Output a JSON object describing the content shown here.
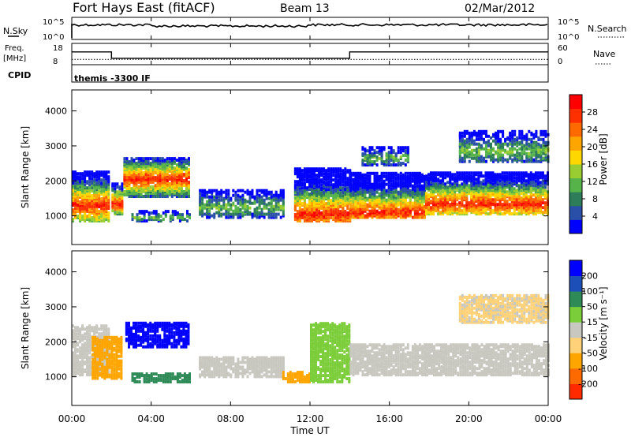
{
  "header": {
    "station": "Fort Hays East (fitACF)",
    "beam": "Beam 13",
    "date": "02/Mar/2012"
  },
  "top_panels": {
    "nsky_label": "N.Sky",
    "nsky_ticks": [
      "10^5",
      "10^0"
    ],
    "nsearch_label": "N.Search",
    "nsearch_ticks": [
      "10^5",
      "10^0"
    ],
    "freq_label_line1": "Freq.",
    "freq_label_line2": "[MHz]",
    "freq_ticks": [
      "18",
      "8"
    ],
    "nave_label": "Nave",
    "nave_ticks": [
      "60",
      "0"
    ],
    "cpid_label": "CPID",
    "cpid_value": "themis -3300 IF"
  },
  "power_colorbar": {
    "label": "Power [dB]",
    "ticks": [
      "28",
      "24",
      "20",
      "16",
      "12",
      "8",
      "4"
    ],
    "colors": [
      "#0000ff",
      "#2a4fa8",
      "#2e7d5a",
      "#55b34a",
      "#9acd32",
      "#ffd700",
      "#ffa500",
      "#ff6a00",
      "#ff3000",
      "#ff0000"
    ]
  },
  "velocity_colorbar": {
    "label": "Velocity [m s⁻¹]",
    "ticks": [
      "200",
      "100",
      "50",
      "15",
      "-15",
      "-50",
      "-100",
      "-200"
    ],
    "colors": [
      "#0000ff",
      "#1c50b8",
      "#2e8b57",
      "#7ccd3a",
      "#c8c8c0",
      "#ffd27a",
      "#ffa500",
      "#ff6a00",
      "#ff2a00"
    ]
  },
  "chart_data": {
    "type": "heatmap",
    "xlabel": "Time UT",
    "ylabel": "Slant Range [km]",
    "x_ticks": [
      "00:00",
      "04:00",
      "08:00",
      "12:00",
      "16:00",
      "20:00",
      "00:00"
    ],
    "x_range_hours": [
      0,
      24
    ],
    "y_range_km": [
      180,
      4600
    ],
    "y_ticks": [
      1000,
      2000,
      3000,
      4000
    ],
    "freq_mhz": [
      {
        "from": 0,
        "to": 2.0,
        "value": 14
      },
      {
        "from": 2.0,
        "to": 14.0,
        "value": 11
      },
      {
        "from": 14.0,
        "to": 24,
        "value": 14
      }
    ],
    "nave": 15,
    "power_regions": [
      {
        "t0": 0.0,
        "t1": 1.9,
        "r0": 900,
        "r1": 2300,
        "core_range": 1350,
        "band": "strong"
      },
      {
        "t0": 2.0,
        "t1": 2.6,
        "r0": 1100,
        "r1": 2000,
        "core_range": 1400,
        "band": "strong"
      },
      {
        "t0": 2.6,
        "t1": 5.9,
        "r0": 1600,
        "r1": 2700,
        "core_range": 2100,
        "band": "strong"
      },
      {
        "t0": 3.0,
        "t1": 6.0,
        "r0": 900,
        "r1": 1200,
        "core_range": 1000,
        "band": "weak"
      },
      {
        "t0": 6.4,
        "t1": 10.6,
        "r0": 1000,
        "r1": 1800,
        "core_range": 1300,
        "band": "weak"
      },
      {
        "t0": 11.2,
        "t1": 14.0,
        "r0": 900,
        "r1": 2400,
        "core_range": 1100,
        "band": "strong"
      },
      {
        "t0": 14.0,
        "t1": 17.8,
        "r0": 1000,
        "r1": 2300,
        "core_range": 1150,
        "band": "strong"
      },
      {
        "t0": 17.8,
        "t1": 24.0,
        "r0": 1100,
        "r1": 2300,
        "core_range": 1400,
        "band": "strong"
      },
      {
        "t0": 14.6,
        "t1": 17.0,
        "r0": 2500,
        "r1": 3000,
        "core_range": 2700,
        "band": "weak"
      },
      {
        "t0": 19.5,
        "t1": 24.0,
        "r0": 2600,
        "r1": 3500,
        "core_range": 2900,
        "band": "weak"
      }
    ],
    "velocity_regions": [
      {
        "t0": 0.0,
        "t1": 1.9,
        "r0": 1100,
        "r1": 2500,
        "velocity": -5
      },
      {
        "t0": 1.0,
        "t1": 2.5,
        "r0": 1000,
        "r1": 2200,
        "velocity": -60
      },
      {
        "t0": 2.7,
        "t1": 5.9,
        "r0": 1900,
        "r1": 2600,
        "velocity": 210
      },
      {
        "t0": 3.0,
        "t1": 6.0,
        "r0": 900,
        "r1": 1150,
        "velocity": 60
      },
      {
        "t0": 6.4,
        "t1": 10.6,
        "r0": 1050,
        "r1": 1600,
        "velocity": 0
      },
      {
        "t0": 10.6,
        "t1": 12.0,
        "r0": 900,
        "r1": 1200,
        "velocity": -60
      },
      {
        "t0": 12.0,
        "t1": 14.0,
        "r0": 900,
        "r1": 2600,
        "velocity": 30
      },
      {
        "t0": 14.0,
        "t1": 24.0,
        "r0": 1100,
        "r1": 2000,
        "velocity": 0
      },
      {
        "t0": 19.5,
        "t1": 24.0,
        "r0": 2600,
        "r1": 3400,
        "velocity": -20
      }
    ]
  }
}
